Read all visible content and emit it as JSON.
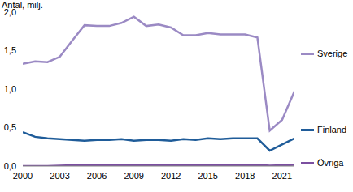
{
  "chart_data": {
    "type": "line",
    "y_label": "Antal, milj.",
    "x": [
      2000,
      2001,
      2002,
      2003,
      2004,
      2005,
      2006,
      2007,
      2008,
      2009,
      2010,
      2011,
      2012,
      2013,
      2014,
      2015,
      2016,
      2017,
      2018,
      2019,
      2020,
      2021,
      2022
    ],
    "series": [
      {
        "name": "Sverige",
        "color": "#9b8ac4",
        "values": [
          1.33,
          1.36,
          1.35,
          1.42,
          1.63,
          1.83,
          1.82,
          1.82,
          1.86,
          1.94,
          1.82,
          1.84,
          1.8,
          1.7,
          1.7,
          1.73,
          1.71,
          1.71,
          1.71,
          1.67,
          0.46,
          0.6,
          0.97
        ]
      },
      {
        "name": "Finland",
        "color": "#1f5c99",
        "values": [
          0.44,
          0.38,
          0.36,
          0.35,
          0.34,
          0.33,
          0.34,
          0.34,
          0.35,
          0.33,
          0.34,
          0.34,
          0.33,
          0.35,
          0.34,
          0.36,
          0.35,
          0.36,
          0.36,
          0.36,
          0.2,
          0.28,
          0.36
        ]
      },
      {
        "name": "Övriga",
        "color": "#7b4fa0",
        "values": [
          0.0,
          0.0,
          0.0,
          0.005,
          0.01,
          0.01,
          0.01,
          0.01,
          0.01,
          0.01,
          0.01,
          0.01,
          0.01,
          0.01,
          0.01,
          0.01,
          0.015,
          0.01,
          0.01,
          0.015,
          0.005,
          0.01,
          0.015
        ]
      }
    ],
    "xlim": [
      2000,
      2022
    ],
    "xticks": [
      2000,
      2003,
      2006,
      2009,
      2012,
      2015,
      2018,
      2021
    ],
    "ylim": [
      0,
      2
    ],
    "yticks": [
      {
        "value": 0,
        "label": "0,0"
      },
      {
        "value": 0.5,
        "label": "0,5"
      },
      {
        "value": 1,
        "label": "1,0"
      },
      {
        "value": 1.5,
        "label": "1,5"
      },
      {
        "value": 2,
        "label": "2,0"
      }
    ],
    "grid": false,
    "legend": "right"
  }
}
